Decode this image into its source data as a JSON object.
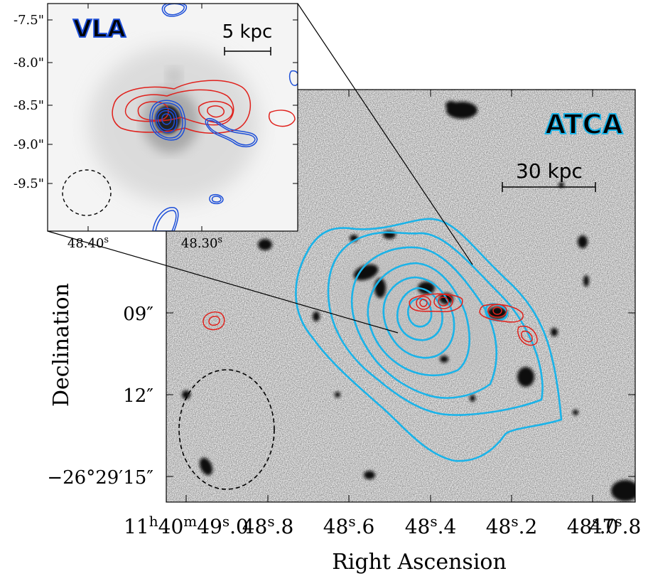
{
  "main_panel": {
    "label": "ATCA",
    "scalebar_label": "30 kpc",
    "xlabel": "Right Ascension",
    "ylabel": "Declination",
    "yticks": [
      {
        "text": "09″",
        "value": "09"
      },
      {
        "text": "12″",
        "value": "12"
      },
      {
        "text": "−26°29′15″",
        "value": "-26d29m15s"
      }
    ],
    "xticks": [
      {
        "a": "11",
        "b": "h",
        "c": "40",
        "d": "m",
        "e": "49",
        "f": "s",
        "g": ".0"
      },
      {
        "a": "48",
        "f": "s",
        "g": ".8"
      },
      {
        "a": "48",
        "f": "s",
        "g": ".6"
      },
      {
        "a": "48",
        "f": "s",
        "g": ".4"
      },
      {
        "a": "48",
        "f": "s",
        "g": ".2"
      },
      {
        "a": "48",
        "f": "s",
        "g": ".0"
      },
      {
        "a": "47",
        "f": "s",
        "g": ".8"
      }
    ],
    "colors": {
      "atca_contour": "#1bb3e8",
      "radio_contour": "#e0201b",
      "beam": "#000000"
    }
  },
  "inset": {
    "label": "VLA",
    "scalebar_label": "5 kpc",
    "yticks": [
      "-7.5\"",
      "-8.0\"",
      "-8.5\"",
      "-9.0\"",
      "-9.5\""
    ],
    "xticks": [
      {
        "main": "48.40",
        "sup": "s"
      },
      {
        "main": "48.30",
        "sup": "s"
      }
    ],
    "colors": {
      "vla_contour": "#1d4fd8",
      "radio_contour": "#e0201b"
    }
  }
}
